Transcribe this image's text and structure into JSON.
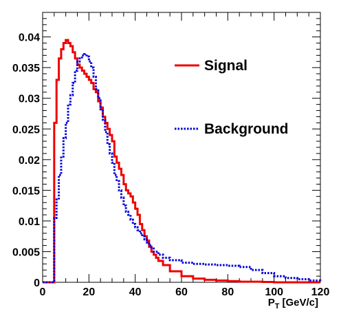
{
  "chart_data": {
    "type": "line",
    "step": true,
    "xlabel": "P",
    "xlabel_sub": "T",
    "xlabel_unit": "[GeV/c]",
    "xlim": [
      0,
      120
    ],
    "ylim": [
      0,
      0.044
    ],
    "xticks": [
      0,
      20,
      40,
      60,
      80,
      100,
      120
    ],
    "yticks": [
      0,
      0.005,
      0.01,
      0.015,
      0.02,
      0.025,
      0.03,
      0.035,
      0.04
    ],
    "xtick_labels": [
      "0",
      "20",
      "40",
      "60",
      "80",
      "100",
      "120"
    ],
    "ytick_labels": [
      "0",
      "0.005",
      "0.01",
      "0.015",
      "0.02",
      "0.025",
      "0.03",
      "0.035",
      "0.04"
    ],
    "legend_position": "top-right",
    "series": [
      {
        "name": "Signal",
        "color": "#ee0000",
        "style": "solid",
        "x": [
          0,
          4,
          5,
          6,
          7,
          8,
          9,
          10,
          11,
          12,
          13,
          14,
          15,
          16,
          17,
          18,
          19,
          20,
          21,
          22,
          23,
          24,
          25,
          26,
          27,
          28,
          29,
          30,
          31,
          32,
          33,
          34,
          35,
          36,
          37,
          38,
          39,
          40,
          41,
          42,
          43,
          44,
          45,
          46,
          47,
          48,
          49,
          50,
          52,
          55,
          60,
          65,
          70,
          75,
          80,
          85,
          90,
          95,
          100,
          110,
          120
        ],
        "y": [
          0,
          0,
          0.026,
          0.033,
          0.0365,
          0.038,
          0.039,
          0.0395,
          0.039,
          0.0385,
          0.0375,
          0.0365,
          0.0355,
          0.035,
          0.0345,
          0.034,
          0.0335,
          0.033,
          0.0325,
          0.0315,
          0.031,
          0.0295,
          0.0285,
          0.027,
          0.026,
          0.025,
          0.024,
          0.023,
          0.0205,
          0.0195,
          0.0185,
          0.0175,
          0.016,
          0.015,
          0.0145,
          0.014,
          0.013,
          0.012,
          0.011,
          0.0095,
          0.0085,
          0.0075,
          0.0068,
          0.0058,
          0.005,
          0.0045,
          0.004,
          0.0035,
          0.0028,
          0.0018,
          0.001,
          0.0006,
          0.0004,
          0.0003,
          0.0002,
          0.0001,
          0.0001,
          5e-05,
          0,
          0,
          0
        ]
      },
      {
        "name": "Background",
        "color": "#0000dd",
        "style": "dotted",
        "x": [
          0,
          4,
          5,
          6,
          7,
          8,
          9,
          10,
          11,
          12,
          13,
          14,
          15,
          16,
          17,
          18,
          19,
          20,
          21,
          22,
          23,
          24,
          25,
          26,
          27,
          28,
          29,
          30,
          31,
          32,
          33,
          34,
          35,
          36,
          37,
          38,
          39,
          40,
          41,
          42,
          43,
          44,
          45,
          46,
          47,
          48,
          50,
          52,
          55,
          60,
          65,
          70,
          75,
          80,
          85,
          90,
          95,
          100,
          105,
          110,
          115,
          120
        ],
        "y": [
          0,
          0,
          0.0105,
          0.0135,
          0.0175,
          0.0205,
          0.0235,
          0.026,
          0.029,
          0.0305,
          0.0325,
          0.0345,
          0.036,
          0.0365,
          0.037,
          0.0372,
          0.0368,
          0.036,
          0.035,
          0.0335,
          0.0315,
          0.03,
          0.0282,
          0.0265,
          0.0245,
          0.0225,
          0.021,
          0.0195,
          0.0175,
          0.0165,
          0.015,
          0.0138,
          0.0125,
          0.0115,
          0.011,
          0.0102,
          0.0095,
          0.009,
          0.0085,
          0.008,
          0.0075,
          0.007,
          0.0065,
          0.006,
          0.0055,
          0.005,
          0.0045,
          0.004,
          0.0036,
          0.0032,
          0.003,
          0.0029,
          0.0028,
          0.0027,
          0.0025,
          0.002,
          0.0015,
          0.001,
          0.0007,
          0.0005,
          0.0003,
          0.0002
        ]
      }
    ]
  }
}
